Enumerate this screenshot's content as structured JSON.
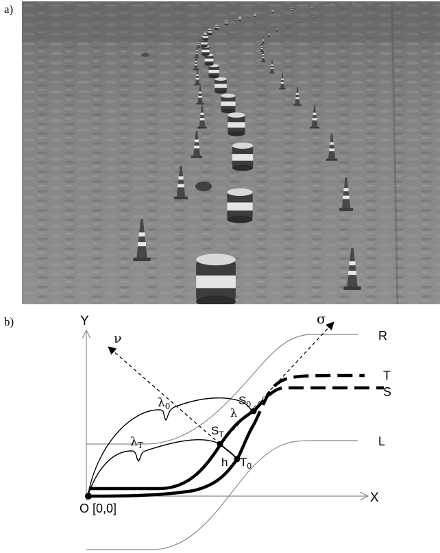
{
  "panels": {
    "a": "a)",
    "b": "b)"
  },
  "photo": {
    "scene": "cone-slalom-track",
    "sky_color": "#6f6f6f",
    "ground_color": "#8a8a8a"
  },
  "diagram": {
    "axis_y": "Y",
    "axis_x": "X",
    "origin": "O [0,0]",
    "sigma": "σ",
    "nu": "ν",
    "curve_R": "R",
    "curve_T": "T",
    "curve_S": "S",
    "curve_L": "L",
    "lambda_0": "λ",
    "lambda_0_sub": "0",
    "lambda_T": "λ",
    "lambda_T_sub": "T",
    "lambda": "λ",
    "S0": "S",
    "S0_sub": "0",
    "ST": "S",
    "ST_sub": "T",
    "T0": "T",
    "T0_sub": "0",
    "h": "h"
  }
}
